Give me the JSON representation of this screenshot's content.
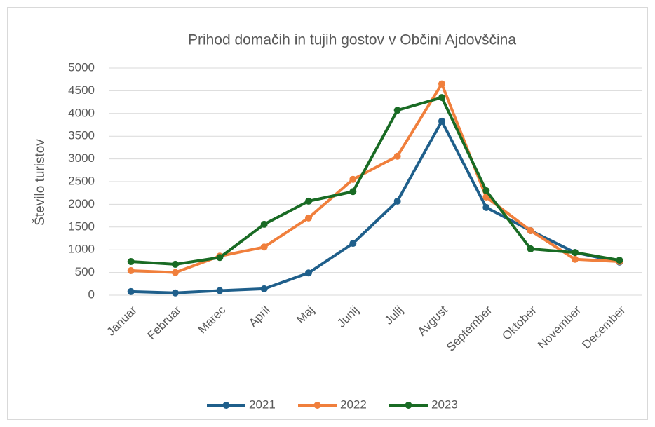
{
  "chart_data": {
    "type": "line",
    "title": "Prihod domačih in tujih gostov v Občini Ajdovščina",
    "y_label": "Število turistov",
    "categories": [
      "Januar",
      "Februar",
      "Marec",
      "April",
      "Maj",
      "Junij",
      "Julij",
      "Avgust",
      "September",
      "Oktober",
      "November",
      "December"
    ],
    "series": [
      {
        "name": "2021",
        "color": "#1f5f8b",
        "values": [
          80,
          50,
          100,
          140,
          490,
          1140,
          2070,
          3830,
          1930,
          1420,
          940,
          730
        ]
      },
      {
        "name": "2022",
        "color": "#f07f3c",
        "values": [
          540,
          500,
          860,
          1060,
          1700,
          2550,
          3060,
          4650,
          2160,
          1420,
          790,
          740
        ]
      },
      {
        "name": "2023",
        "color": "#196b24",
        "values": [
          740,
          680,
          830,
          1560,
          2070,
          2280,
          4070,
          4350,
          2300,
          1020,
          940,
          770
        ]
      }
    ],
    "ylim": [
      0,
      5000
    ],
    "yticks": [
      0,
      500,
      1000,
      1500,
      2000,
      2500,
      3000,
      3500,
      4000,
      4500,
      5000
    ],
    "grid": true,
    "legend": "bottom"
  }
}
